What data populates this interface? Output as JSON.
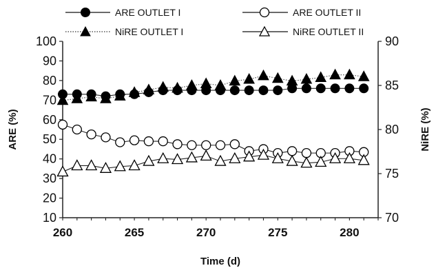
{
  "chart_data": {
    "type": "line",
    "x": [
      260,
      261,
      262,
      263,
      264,
      265,
      266,
      267,
      268,
      269,
      270,
      271,
      272,
      273,
      274,
      275,
      276,
      277,
      278,
      279,
      280,
      281
    ],
    "xlabel": "Time (d)",
    "ylabel": "ARE (%)",
    "y2label": "NiRE (%)",
    "xlim": [
      260,
      282
    ],
    "ylim": [
      10,
      100
    ],
    "y2lim": [
      70,
      90
    ],
    "xticks": [
      "260",
      "265",
      "270",
      "275",
      "280"
    ],
    "yticks": [
      "10",
      "20",
      "30",
      "40",
      "50",
      "60",
      "70",
      "80",
      "90",
      "100"
    ],
    "y2ticks": [
      "70",
      "75",
      "80",
      "85",
      "90"
    ],
    "grid": false,
    "legend": "top",
    "series": [
      {
        "name": "ARE OUTLET I",
        "axis": "left",
        "marker": "filled-circle",
        "line": "solid",
        "values": [
          73,
          73,
          73,
          72,
          73,
          73,
          74,
          75,
          75,
          75,
          75,
          75,
          75,
          75,
          75,
          75,
          76,
          76,
          76,
          76,
          76,
          76
        ]
      },
      {
        "name": "ARE OUTLET II",
        "axis": "left",
        "marker": "open-circle",
        "line": "solid",
        "values": [
          57.5,
          55,
          52.5,
          51,
          48.5,
          49.5,
          49,
          49,
          47.5,
          47,
          47,
          47,
          47.5,
          44,
          45,
          43,
          44,
          43,
          43,
          43,
          44,
          43.5
        ]
      },
      {
        "name": "NiRE OUTLET I",
        "axis": "right",
        "marker": "filled-triangle",
        "line": "dotted",
        "values": [
          83.3,
          83.5,
          83.7,
          83.5,
          83.8,
          84.2,
          84.5,
          84.8,
          84.7,
          85,
          85.2,
          85,
          85.5,
          85.7,
          86.1,
          85.8,
          85.5,
          85.7,
          85.9,
          86.2,
          86.2,
          86
        ]
      },
      {
        "name": "NiRE OUTLET II",
        "axis": "right",
        "marker": "open-triangle",
        "line": "solid",
        "values": [
          75.2,
          75.9,
          75.9,
          75.6,
          75.8,
          75.9,
          76.4,
          76.7,
          76.6,
          76.8,
          77,
          76.4,
          76.7,
          76.9,
          77.1,
          76.7,
          76.4,
          76.2,
          76.3,
          76.7,
          76.7,
          76.5
        ]
      }
    ]
  }
}
